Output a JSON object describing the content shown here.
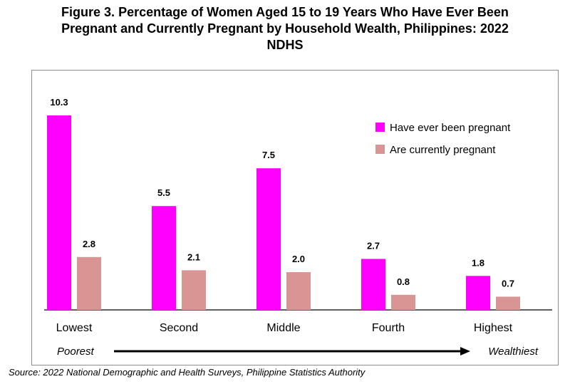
{
  "title_lines": [
    "Figure 3. Percentage of Women Aged 15 to 19 Years Who Have Ever Been",
    "Pregnant and Currently Pregnant by Household Wealth, Philippines: 2022",
    "NDHS"
  ],
  "source": "Source: 2022 National Demographic and Health Surveys, Philippine Statistics Authority",
  "axis_annotation": {
    "left": "Poorest",
    "right": "Wealthiest"
  },
  "colors": {
    "ever_pregnant": "#ff00ff",
    "currently_pregnant": "#d99594",
    "axis": "#000000"
  },
  "chart_data": {
    "type": "bar",
    "title": "Figure 3. Percentage of Women Aged 15 to 19 Years Who Have Ever Been Pregnant and Currently Pregnant by Household Wealth, Philippines: 2022 NDHS",
    "categories": [
      "Lowest",
      "Second",
      "Middle",
      "Fourth",
      "Highest"
    ],
    "series": [
      {
        "name": "Have ever been pregnant",
        "values": [
          10.3,
          5.5,
          7.5,
          2.7,
          1.8
        ],
        "labels": [
          "10.3",
          "5.5",
          "7.5",
          "2.7",
          "1.8"
        ],
        "color": "#ff00ff"
      },
      {
        "name": "Are currently pregnant",
        "values": [
          2.8,
          2.1,
          2.0,
          0.8,
          0.7
        ],
        "labels": [
          "2.8",
          "2.1",
          "2.0",
          "0.8",
          "0.7"
        ],
        "color": "#d99594"
      }
    ],
    "xlabel": "",
    "ylabel": "",
    "ylim": [
      0,
      10.3
    ],
    "grid": false,
    "legend": "top-right",
    "data_labels": true
  }
}
